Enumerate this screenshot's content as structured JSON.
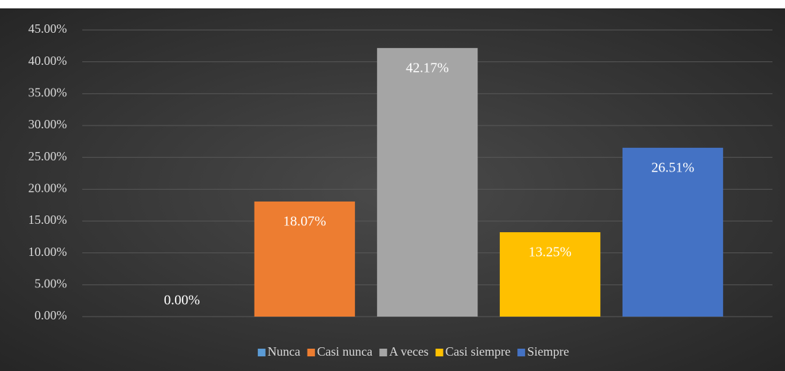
{
  "chart_data": {
    "type": "bar",
    "categories": [
      null
    ],
    "series": [
      {
        "name": "Nunca",
        "color": "#5b9bd5",
        "values": [
          0
        ],
        "value_labels": [
          "0.00%"
        ]
      },
      {
        "name": "Casi nunca",
        "color": "#ed7d31",
        "values": [
          18.07
        ],
        "value_labels": [
          "18.07%"
        ]
      },
      {
        "name": "A veces",
        "color": "#a5a5a5",
        "values": [
          42.17
        ],
        "value_labels": [
          "42.17%"
        ]
      },
      {
        "name": "Casi siempre",
        "color": "#ffc000",
        "values": [
          13.25
        ],
        "value_labels": [
          "13.25%"
        ]
      },
      {
        "name": "Siempre",
        "color": "#4472c4",
        "values": [
          26.51
        ],
        "value_labels": [
          "26.51%"
        ]
      }
    ],
    "ylim": [
      0,
      45
    ],
    "yticks": [
      {
        "value": 0,
        "label": "0.00%"
      },
      {
        "value": 5,
        "label": "5.00%"
      },
      {
        "value": 10,
        "label": "10.00%"
      },
      {
        "value": 15,
        "label": "15.00%"
      },
      {
        "value": 20,
        "label": "20.00%"
      },
      {
        "value": 25,
        "label": "25.00%"
      },
      {
        "value": 30,
        "label": "30.00%"
      },
      {
        "value": 35,
        "label": "35.00%"
      },
      {
        "value": 40,
        "label": "40.00%"
      },
      {
        "value": 45,
        "label": "45.00%"
      }
    ],
    "grid": true,
    "legend": "bottom"
  }
}
